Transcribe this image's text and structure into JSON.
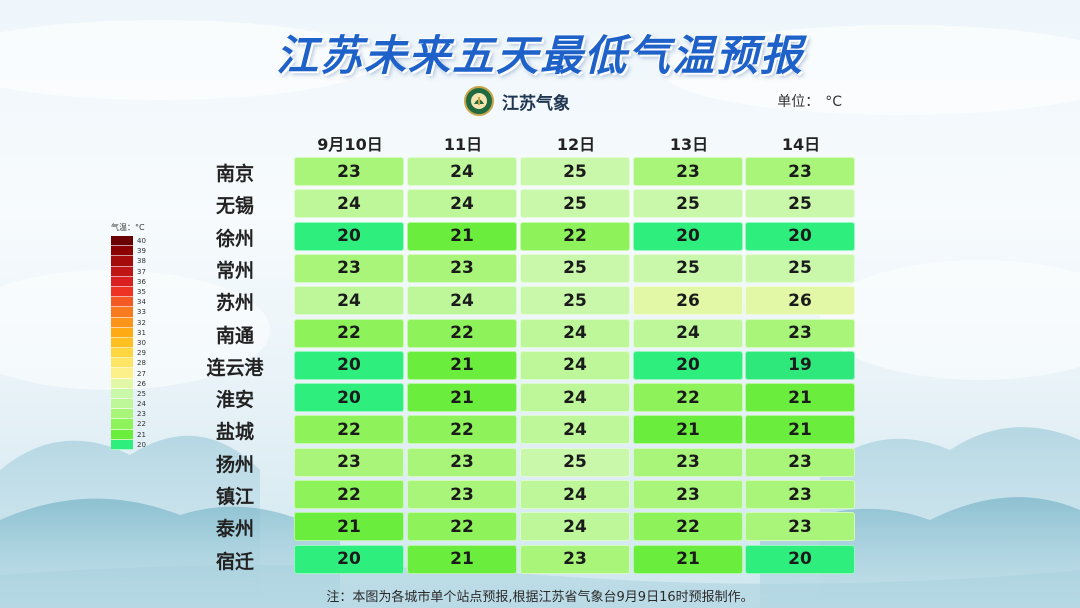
{
  "title": "江苏未来五天最低气温预报",
  "logo_text": "江苏气象",
  "unit_label": "单位：",
  "unit_value": "°C",
  "days": [
    "9月10日",
    "11日",
    "12日",
    "13日",
    "14日"
  ],
  "rows": [
    {
      "city": "南京",
      "values": [
        23,
        24,
        25,
        23,
        23
      ]
    },
    {
      "city": "无锡",
      "values": [
        24,
        24,
        25,
        25,
        25
      ]
    },
    {
      "city": "徐州",
      "values": [
        20,
        21,
        22,
        20,
        20
      ]
    },
    {
      "city": "常州",
      "values": [
        23,
        23,
        25,
        25,
        25
      ]
    },
    {
      "city": "苏州",
      "values": [
        24,
        24,
        25,
        26,
        26
      ]
    },
    {
      "city": "南通",
      "values": [
        22,
        22,
        24,
        24,
        23
      ]
    },
    {
      "city": "连云港",
      "values": [
        20,
        21,
        24,
        20,
        19
      ]
    },
    {
      "city": "淮安",
      "values": [
        20,
        21,
        24,
        22,
        21
      ]
    },
    {
      "city": "盐城",
      "values": [
        22,
        22,
        24,
        21,
        21
      ]
    },
    {
      "city": "扬州",
      "values": [
        23,
        23,
        25,
        23,
        23
      ]
    },
    {
      "city": "镇江",
      "values": [
        22,
        23,
        24,
        23,
        23
      ]
    },
    {
      "city": "泰州",
      "values": [
        21,
        22,
        24,
        22,
        23
      ]
    },
    {
      "city": "宿迁",
      "values": [
        20,
        21,
        23,
        21,
        20
      ]
    }
  ],
  "temperature_colors": {
    "19": "#2ee87c",
    "20": "#2eef7e",
    "21": "#6bed3e",
    "22": "#8ef25a",
    "23": "#a8f57a",
    "24": "#bdf79a",
    "25": "#c9f8aa",
    "26": "#e3f8a6"
  },
  "legend": {
    "title": "气温：°C",
    "items": [
      {
        "label": "40",
        "color": "#6b0000"
      },
      {
        "label": "39",
        "color": "#8b0000"
      },
      {
        "label": "38",
        "color": "#a50b0b"
      },
      {
        "label": "37",
        "color": "#bf1515"
      },
      {
        "label": "36",
        "color": "#d91f1f"
      },
      {
        "label": "35",
        "color": "#ee3324"
      },
      {
        "label": "34",
        "color": "#f45a24"
      },
      {
        "label": "33",
        "color": "#f77a1f"
      },
      {
        "label": "32",
        "color": "#fb9418"
      },
      {
        "label": "31",
        "color": "#fdaa14"
      },
      {
        "label": "30",
        "color": "#fec020"
      },
      {
        "label": "29",
        "color": "#fed640"
      },
      {
        "label": "28",
        "color": "#fee565"
      },
      {
        "label": "27",
        "color": "#fbf08a"
      },
      {
        "label": "26",
        "color": "#e3f8a6"
      },
      {
        "label": "25",
        "color": "#c9f8aa"
      },
      {
        "label": "24",
        "color": "#bdf79a"
      },
      {
        "label": "23",
        "color": "#a8f57a"
      },
      {
        "label": "22",
        "color": "#8ef25a"
      },
      {
        "label": "21",
        "color": "#6bed3e"
      },
      {
        "label": "20",
        "color": "#2eef7e"
      }
    ]
  },
  "footnote": "注：本图为各城市单个站点预报,根据江苏省气象台9月9日16时预报制作。"
}
